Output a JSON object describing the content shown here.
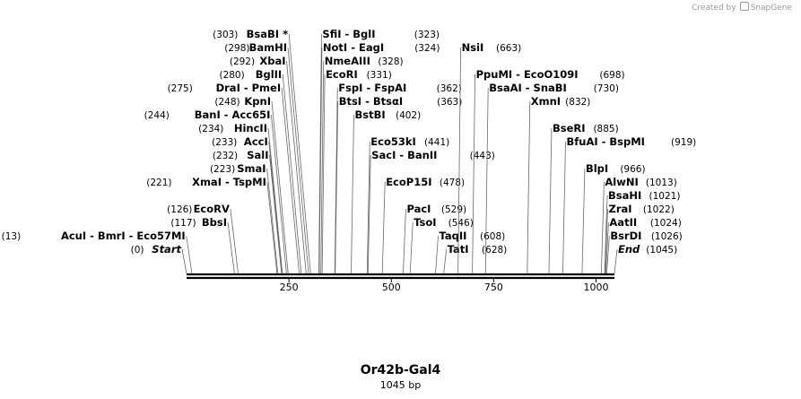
{
  "credit": {
    "prefix": "Created by",
    "brand": "SnapGene"
  },
  "plasmid": {
    "name": "Or42b-Gal4",
    "length_label": "1045 bp",
    "length": 1045
  },
  "ruler": {
    "ticks": [
      "250",
      "500",
      "750",
      "1000"
    ]
  },
  "features": [
    {
      "pos": 0,
      "pos_label": "(0)",
      "name": "Start",
      "italic": true,
      "row": 0
    },
    {
      "pos": 13,
      "pos_label": "(13)",
      "name": "AcuI  -  BmrI  -  Eco57MI",
      "row": 1
    },
    {
      "pos": 117,
      "pos_label": "(117)",
      "name": "BbsI",
      "row": 2
    },
    {
      "pos": 126,
      "pos_label": "(126)",
      "name": "EcoRV",
      "row": 3
    },
    {
      "pos": 221,
      "pos_label": "(221)",
      "name": "XmaI  -  TspMI",
      "row": 5
    },
    {
      "pos": 223,
      "pos_label": "(223)",
      "name": "SmaI",
      "row": 6
    },
    {
      "pos": 232,
      "pos_label": "(232)",
      "name": "SalI",
      "row": 7
    },
    {
      "pos": 233,
      "pos_label": "(233)",
      "name": "AccI",
      "row": 8
    },
    {
      "pos": 234,
      "pos_label": "(234)",
      "name": "HincII",
      "row": 9
    },
    {
      "pos": 244,
      "pos_label": "(244)",
      "name": "BanI  -  Acc65I",
      "row": 10
    },
    {
      "pos": 248,
      "pos_label": "(248)",
      "name": "KpnI",
      "row": 11
    },
    {
      "pos": 275,
      "pos_label": "(275)",
      "name": "DraI  -  PmeI",
      "row": 12
    },
    {
      "pos": 280,
      "pos_label": "(280)",
      "name": "BglII",
      "row": 13
    },
    {
      "pos": 292,
      "pos_label": "(292)",
      "name": "XbaI",
      "row": 14
    },
    {
      "pos": 298,
      "pos_label": "(298)",
      "name": "BamHI",
      "row": 15
    },
    {
      "pos": 303,
      "pos_label": "(303)",
      "name": "BsaBI *",
      "row": 16
    }
  ],
  "features_right": [
    {
      "pos": 323,
      "pos_label": "(323)",
      "name": "SfiI  -  BglI",
      "row": 16
    },
    {
      "pos": 324,
      "pos_label": "(324)",
      "name": "NotI  -  EagI",
      "row": 15
    },
    {
      "pos": 328,
      "pos_label": "(328)",
      "name": "NmeAIII",
      "row": 14
    },
    {
      "pos": 331,
      "pos_label": "(331)",
      "name": "EcoRI",
      "row": 13
    },
    {
      "pos": 362,
      "pos_label": "(362)",
      "name": "FspI  -  FspAI",
      "row": 12
    },
    {
      "pos": 363,
      "pos_label": "(363)",
      "name": "BtsI  -  BtsαI",
      "row": 11
    },
    {
      "pos": 402,
      "pos_label": "(402)",
      "name": "BstBI",
      "row": 10
    },
    {
      "pos": 441,
      "pos_label": "(441)",
      "name": "Eco53kI",
      "row": 8
    },
    {
      "pos": 443,
      "pos_label": "(443)",
      "name": "SacI  -  BanII",
      "row": 7
    },
    {
      "pos": 478,
      "pos_label": "(478)",
      "name": "EcoP15I",
      "row": 5
    },
    {
      "pos": 529,
      "pos_label": "(529)",
      "name": "PacI",
      "row": 3
    },
    {
      "pos": 546,
      "pos_label": "(546)",
      "name": "TsoI",
      "row": 2
    },
    {
      "pos": 608,
      "pos_label": "(608)",
      "name": "TaqII",
      "row": 1
    },
    {
      "pos": 628,
      "pos_label": "(628)",
      "name": "TatI",
      "row": 0
    },
    {
      "pos": 663,
      "pos_label": "(663)",
      "name": "NsiI",
      "row": 15
    },
    {
      "pos": 698,
      "pos_label": "(698)",
      "name": "PpuMI  -  EcoO109I",
      "row": 13
    },
    {
      "pos": 730,
      "pos_label": "(730)",
      "name": "BsaAI  -  SnaBI",
      "row": 12
    },
    {
      "pos": 832,
      "pos_label": "(832)",
      "name": "XmnI",
      "row": 11
    },
    {
      "pos": 885,
      "pos_label": "(885)",
      "name": "BseRI",
      "row": 9
    },
    {
      "pos": 919,
      "pos_label": "(919)",
      "name": "BfuAI  -  BspMI",
      "row": 8
    },
    {
      "pos": 966,
      "pos_label": "(966)",
      "name": "BlpI",
      "row": 6
    },
    {
      "pos": 1013,
      "pos_label": "(1013)",
      "name": "AlwNI",
      "row": 5
    },
    {
      "pos": 1021,
      "pos_label": "(1021)",
      "name": "BsaHI",
      "row": 4
    },
    {
      "pos": 1022,
      "pos_label": "(1022)",
      "name": "ZraI",
      "row": 3
    },
    {
      "pos": 1024,
      "pos_label": "(1024)",
      "name": "AatII",
      "row": 2
    },
    {
      "pos": 1026,
      "pos_label": "(1026)",
      "name": "BsrDI",
      "row": 1
    },
    {
      "pos": 1045,
      "pos_label": "(1045)",
      "name": "End",
      "italic": true,
      "row": 0
    }
  ]
}
